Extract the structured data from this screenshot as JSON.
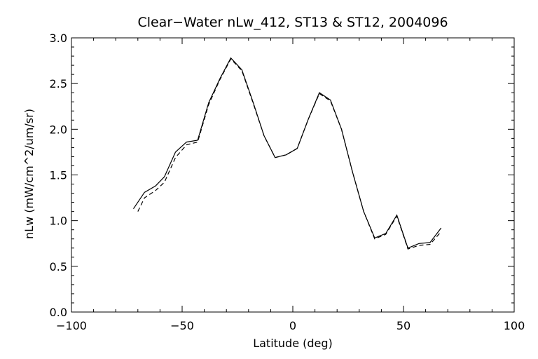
{
  "chart_data": {
    "type": "line",
    "title": "Clear−Water nLw_412, ST13 & ST12, 2004096",
    "xlabel": "Latitude (deg)",
    "ylabel": "nLw (mW/cm^2/um/sr)",
    "xlim": [
      -100,
      100
    ],
    "ylim": [
      0.0,
      3.0
    ],
    "xticks": [
      -100,
      -50,
      0,
      50,
      100
    ],
    "xtick_labels": [
      "−100",
      "−50",
      "0",
      "50",
      "100"
    ],
    "yticks": [
      0.0,
      0.5,
      1.0,
      1.5,
      2.0,
      2.5,
      3.0
    ],
    "ytick_labels": [
      "0.0",
      "0.5",
      "1.0",
      "1.5",
      "2.0",
      "2.5",
      "3.0"
    ],
    "grid": false,
    "legend": "none",
    "series": [
      {
        "style": "solid",
        "x": [
          -72,
          -67,
          -62,
          -58,
          -53,
          -48,
          -43,
          -38,
          -33,
          -28,
          -23,
          -18,
          -13,
          -8,
          -3,
          2,
          7,
          12,
          17,
          22,
          27,
          32,
          37,
          42,
          47,
          52,
          57,
          62,
          67
        ],
        "y": [
          1.13,
          1.31,
          1.38,
          1.48,
          1.75,
          1.86,
          1.88,
          2.29,
          2.55,
          2.78,
          2.65,
          2.3,
          1.93,
          1.69,
          1.72,
          1.79,
          2.11,
          2.4,
          2.32,
          2.0,
          1.53,
          1.1,
          0.81,
          0.86,
          1.06,
          0.7,
          0.75,
          0.76,
          0.92
        ]
      },
      {
        "style": "dashed",
        "x": [
          -70,
          -67,
          -62,
          -58,
          -53,
          -48,
          -43,
          -38,
          -33,
          -28,
          -23,
          -18,
          -13,
          -8,
          -3,
          2,
          7,
          12,
          17,
          22,
          27,
          32,
          37,
          42,
          47,
          52,
          57,
          62,
          67
        ],
        "y": [
          1.1,
          1.25,
          1.33,
          1.42,
          1.69,
          1.83,
          1.86,
          2.27,
          2.54,
          2.77,
          2.64,
          2.29,
          1.93,
          1.69,
          1.72,
          1.79,
          2.11,
          2.39,
          2.31,
          2.0,
          1.53,
          1.1,
          0.8,
          0.85,
          1.05,
          0.69,
          0.73,
          0.74,
          0.88
        ]
      }
    ]
  }
}
